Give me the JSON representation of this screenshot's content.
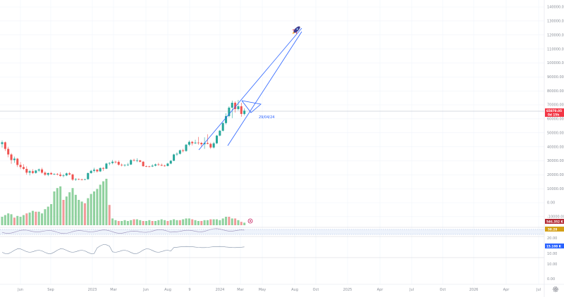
{
  "chart_data": {
    "type": "candlestick",
    "price_axis": {
      "ticks": [
        "140000.00",
        "130000.00",
        "120000.00",
        "110000.00",
        "100000.00",
        "90000.00",
        "80000.00",
        "70000.00",
        "60000.00",
        "50000.00",
        "40000.00",
        "30000.00",
        "20000.00",
        "10000.00",
        "0.00",
        "-10000.00"
      ],
      "range": [
        -10000,
        140000
      ]
    },
    "time_axis": {
      "ticks": [
        "Jun",
        "Sep",
        "2023",
        "Mar",
        "Jun",
        "Aug",
        "9",
        "2024",
        "Mar",
        "May",
        "Aug",
        "Oct",
        "2025",
        "Apr",
        "Jul",
        "Oct",
        "2026",
        "Apr",
        "Jul"
      ]
    },
    "current_price": {
      "value": "65870.05",
      "countdown": "0d 15h",
      "color": "#f23645"
    },
    "volume_badge": {
      "value": "546.352 K",
      "color": "#b22833"
    },
    "indicator1_badge": {
      "value": "58.28",
      "color": "#d4a017"
    },
    "indicator2": {
      "ticks": [
        "20.00",
        "10.00",
        "0.00"
      ],
      "badge": {
        "value": "15.108 K",
        "color": "#2962ff"
      }
    },
    "lower_pane_ticks": [
      "10.00",
      "0.00"
    ],
    "annotation_date": "29/04/24",
    "colors": {
      "up": "#26a69a",
      "down": "#ef5350",
      "vol_up": "#8fd19e",
      "vol_down": "#f19999",
      "trend": "#2962ff",
      "price_line": "#b0b7c3"
    },
    "icons": [
      "rocket-icon",
      "settings-gear-icon",
      "alert-circle-icon"
    ],
    "candles": [
      [
        42000,
        44500,
        39500,
        43200
      ],
      [
        43200,
        43800,
        37000,
        38500
      ],
      [
        38500,
        40000,
        32500,
        34500
      ],
      [
        34500,
        35500,
        27800,
        30500
      ],
      [
        30500,
        33000,
        28500,
        31500
      ],
      [
        31500,
        32000,
        25500,
        27000
      ],
      [
        27000,
        29000,
        24000,
        25500
      ],
      [
        25500,
        27500,
        23500,
        24200
      ],
      [
        24200,
        26000,
        20000,
        21500
      ],
      [
        21500,
        23500,
        19500,
        22500
      ],
      [
        22500,
        24000,
        20500,
        21300
      ],
      [
        21300,
        23500,
        20800,
        23000
      ],
      [
        23000,
        24500,
        22000,
        23800
      ],
      [
        23800,
        25000,
        20800,
        21500
      ],
      [
        21500,
        22500,
        19200,
        20000
      ],
      [
        20000,
        21500,
        19000,
        21200
      ],
      [
        21200,
        22000,
        20000,
        20300
      ],
      [
        20300,
        21000,
        19800,
        20500
      ],
      [
        20500,
        21200,
        19500,
        20100
      ],
      [
        20100,
        21800,
        18500,
        19200
      ],
      [
        19200,
        20500,
        18200,
        19500
      ],
      [
        19500,
        21500,
        19000,
        21000
      ],
      [
        21000,
        22000,
        19700,
        20200
      ],
      [
        20200,
        20800,
        15600,
        16500
      ],
      [
        16500,
        17500,
        15600,
        16900
      ],
      [
        16900,
        17300,
        16200,
        16700
      ],
      [
        16700,
        17200,
        16000,
        16500
      ],
      [
        16500,
        17000,
        16200,
        16800
      ],
      [
        16800,
        21500,
        16500,
        21200
      ],
      [
        21200,
        23500,
        20800,
        22800
      ],
      [
        22800,
        25000,
        21500,
        23600
      ],
      [
        23600,
        24200,
        21500,
        22400
      ],
      [
        22400,
        25200,
        22000,
        24800
      ],
      [
        24800,
        25500,
        22800,
        24300
      ],
      [
        24300,
        28500,
        24000,
        28000
      ],
      [
        28000,
        29000,
        26800,
        28400
      ],
      [
        28400,
        30500,
        27500,
        29300
      ],
      [
        29300,
        30000,
        28000,
        29200
      ],
      [
        29200,
        30300,
        26500,
        27200
      ],
      [
        27200,
        28000,
        26000,
        26800
      ],
      [
        26800,
        27500,
        25800,
        27000
      ],
      [
        27000,
        28500,
        26200,
        27300
      ],
      [
        27300,
        31000,
        27000,
        30500
      ],
      [
        30500,
        31500,
        29500,
        30100
      ],
      [
        30100,
        31800,
        29000,
        30300
      ],
      [
        30300,
        30600,
        28800,
        29300
      ],
      [
        29300,
        29800,
        25800,
        26100
      ],
      [
        26100,
        26600,
        25500,
        26000
      ],
      [
        26000,
        26400,
        25300,
        25900
      ],
      [
        25900,
        27500,
        25500,
        26500
      ],
      [
        26500,
        28000,
        26000,
        27400
      ],
      [
        27400,
        28500,
        26500,
        27000
      ],
      [
        27000,
        28000,
        26200,
        26500
      ],
      [
        26500,
        27200,
        25800,
        26300
      ],
      [
        26300,
        28500,
        26000,
        28000
      ],
      [
        28000,
        30500,
        27500,
        30000
      ],
      [
        30000,
        35000,
        29800,
        34500
      ],
      [
        34500,
        36000,
        33500,
        35000
      ],
      [
        35000,
        38000,
        34500,
        37500
      ],
      [
        37500,
        38500,
        36000,
        37000
      ],
      [
        37000,
        42000,
        36500,
        41500
      ],
      [
        41500,
        44500,
        40500,
        43500
      ],
      [
        43500,
        44200,
        41000,
        42500
      ],
      [
        42500,
        45000,
        42000,
        43000
      ],
      [
        43000,
        47000,
        41500,
        42800
      ],
      [
        42800,
        43500,
        40000,
        41800
      ],
      [
        41800,
        46800,
        38500,
        42700
      ],
      [
        42700,
        49000,
        41800,
        42100
      ],
      [
        42100,
        43000,
        38500,
        39500
      ],
      [
        39500,
        43500,
        38800,
        42500
      ],
      [
        42500,
        48500,
        42000,
        48000
      ],
      [
        48000,
        52000,
        47500,
        51500
      ],
      [
        51500,
        57500,
        51000,
        57000
      ],
      [
        57000,
        64000,
        56000,
        62000
      ],
      [
        62000,
        69000,
        61000,
        68000
      ],
      [
        68000,
        73000,
        60500,
        71500
      ],
      [
        71500,
        72500,
        64500,
        67000
      ],
      [
        67000,
        73500,
        66000,
        69000
      ],
      [
        69000,
        71500,
        61500,
        63500
      ],
      [
        63500,
        67500,
        62500,
        65870
      ]
    ],
    "volumes": [
      [
        10,
        1
      ],
      [
        12,
        1
      ],
      [
        14,
        1
      ],
      [
        13,
        1
      ],
      [
        9,
        0
      ],
      [
        11,
        1
      ],
      [
        10,
        1
      ],
      [
        12,
        1
      ],
      [
        14,
        0
      ],
      [
        15,
        1
      ],
      [
        17,
        1
      ],
      [
        16,
        0
      ],
      [
        16,
        1
      ],
      [
        14,
        1
      ],
      [
        19,
        1
      ],
      [
        22,
        1
      ],
      [
        25,
        1
      ],
      [
        40,
        1
      ],
      [
        44,
        1
      ],
      [
        46,
        1
      ],
      [
        30,
        0
      ],
      [
        34,
        1
      ],
      [
        39,
        1
      ],
      [
        44,
        1
      ],
      [
        36,
        1
      ],
      [
        30,
        1
      ],
      [
        28,
        1
      ],
      [
        26,
        0
      ],
      [
        32,
        1
      ],
      [
        37,
        1
      ],
      [
        40,
        1
      ],
      [
        43,
        1
      ],
      [
        48,
        1
      ],
      [
        52,
        1
      ],
      [
        55,
        1
      ],
      [
        24,
        0
      ],
      [
        8,
        1
      ],
      [
        6,
        1
      ],
      [
        5,
        0
      ],
      [
        5,
        1
      ],
      [
        6,
        1
      ],
      [
        5,
        1
      ],
      [
        6,
        1
      ],
      [
        7,
        0
      ],
      [
        7,
        1
      ],
      [
        6,
        1
      ],
      [
        5,
        0
      ],
      [
        5,
        1
      ],
      [
        6,
        1
      ],
      [
        5,
        0
      ],
      [
        5,
        1
      ],
      [
        6,
        1
      ],
      [
        7,
        1
      ],
      [
        6,
        1
      ],
      [
        5,
        0
      ],
      [
        6,
        1
      ],
      [
        7,
        1
      ],
      [
        6,
        1
      ],
      [
        6,
        0
      ],
      [
        7,
        1
      ],
      [
        8,
        1
      ],
      [
        8,
        1
      ],
      [
        7,
        0
      ],
      [
        6,
        1
      ],
      [
        5,
        1
      ],
      [
        5,
        0
      ],
      [
        6,
        1
      ],
      [
        6,
        1
      ],
      [
        7,
        0
      ],
      [
        7,
        1
      ],
      [
        7,
        1
      ],
      [
        6,
        1
      ],
      [
        8,
        1
      ],
      [
        10,
        1
      ],
      [
        10,
        0
      ],
      [
        8,
        1
      ],
      [
        8,
        0
      ],
      [
        6,
        1
      ],
      [
        4,
        0
      ],
      [
        3,
        1
      ]
    ]
  }
}
